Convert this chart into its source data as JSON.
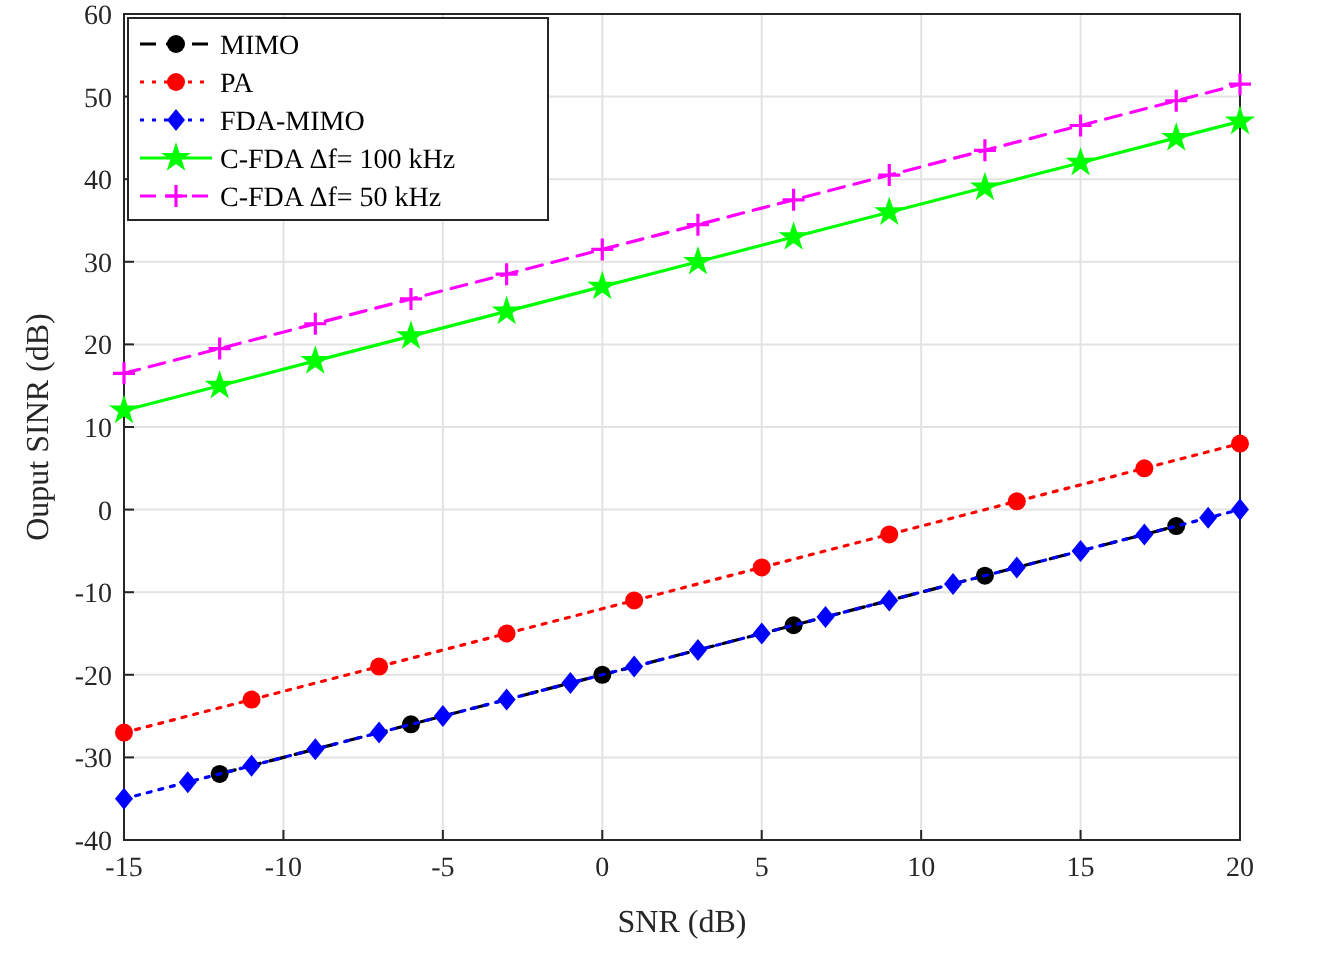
{
  "chart_data": {
    "type": "line",
    "xlabel": "SNR (dB)",
    "ylabel": "Ouput SINR (dB)",
    "xlim": [
      -15,
      20
    ],
    "ylim": [
      -40,
      60
    ],
    "xticks": [
      -15,
      -10,
      -5,
      0,
      5,
      10,
      15,
      20
    ],
    "yticks": [
      -40,
      -30,
      -20,
      -10,
      0,
      10,
      20,
      30,
      40,
      50,
      60
    ],
    "grid": true,
    "legend": "top left",
    "series": [
      {
        "name": "MIMO",
        "color": "#000000",
        "line_style": "dashed",
        "marker": "circle",
        "x": [
          -12,
          -6,
          0,
          6,
          12,
          18
        ],
        "values": [
          -32,
          -26,
          -20,
          -14,
          -8,
          -2
        ]
      },
      {
        "name": "PA",
        "color": "#ff0000",
        "line_style": "dotted",
        "marker": "circle",
        "x": [
          -15,
          -11,
          -7,
          -3,
          1,
          5,
          9,
          13,
          17,
          20
        ],
        "values": [
          -27,
          -23,
          -19,
          -15,
          -11,
          -7,
          -3,
          1,
          5,
          8
        ]
      },
      {
        "name": "FDA-MIMO",
        "color": "#0000ff",
        "line_style": "dotted",
        "marker": "diamond",
        "x": [
          -15,
          -13,
          -11,
          -9,
          -7,
          -5,
          -3,
          -1,
          1,
          3,
          5,
          7,
          9,
          11,
          13,
          15,
          17,
          19,
          20
        ],
        "values": [
          -35,
          -33,
          -31,
          -29,
          -27,
          -25,
          -23,
          -21,
          -19,
          -17,
          -15,
          -13,
          -11,
          -9,
          -7,
          -5,
          -3,
          -1,
          0
        ]
      },
      {
        "name": "C-FDA Δf= 100 kHz",
        "color": "#00ff00",
        "line_style": "solid",
        "marker": "star",
        "x": [
          -15,
          -12,
          -9,
          -6,
          -3,
          0,
          3,
          6,
          9,
          12,
          15,
          18,
          20
        ],
        "values": [
          12,
          15,
          18,
          21,
          24,
          27,
          30,
          33,
          36,
          39,
          42,
          45,
          47
        ]
      },
      {
        "name": "C-FDA Δf= 50 kHz",
        "color": "#ff00ff",
        "line_style": "dashed",
        "marker": "cross",
        "x": [
          -15,
          -12,
          -9,
          -6,
          -3,
          0,
          3,
          6,
          9,
          12,
          15,
          18,
          20
        ],
        "values": [
          16.5,
          19.5,
          22.5,
          25.5,
          28.5,
          31.5,
          34.5,
          37.5,
          40.5,
          43.5,
          46.5,
          49.5,
          51.5
        ]
      }
    ]
  }
}
